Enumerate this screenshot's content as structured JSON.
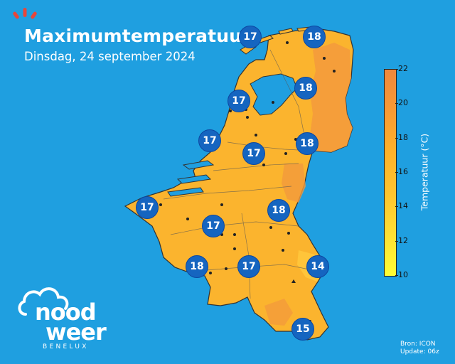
{
  "header": {
    "title": "Maximumtemperatuur",
    "subtitle": "Dinsdag, 24 september 2024"
  },
  "legend": {
    "label": "Temperatuur (°C)",
    "ticks": [
      "22",
      "20",
      "18",
      "16",
      "14",
      "12",
      "10"
    ],
    "range": [
      10,
      22
    ]
  },
  "badges": [
    {
      "value": "17"
    },
    {
      "value": "18"
    },
    {
      "value": "17"
    },
    {
      "value": "18"
    },
    {
      "value": "17"
    },
    {
      "value": "17"
    },
    {
      "value": "18"
    },
    {
      "value": "17"
    },
    {
      "value": "18"
    },
    {
      "value": "17"
    },
    {
      "value": "18"
    },
    {
      "value": "17"
    },
    {
      "value": "14"
    },
    {
      "value": "15"
    }
  ],
  "footer": {
    "source": "Bron: ICON",
    "update": "Update: 06z"
  },
  "brand": {
    "line1": "nood",
    "line2": "weer",
    "line3": "BENELUX"
  },
  "colors": {
    "sea": "#1f9fe0",
    "land": "#fbb42e",
    "warm": "#f39a3c",
    "cool": "#ffd04a",
    "badge": "#1565c0"
  }
}
